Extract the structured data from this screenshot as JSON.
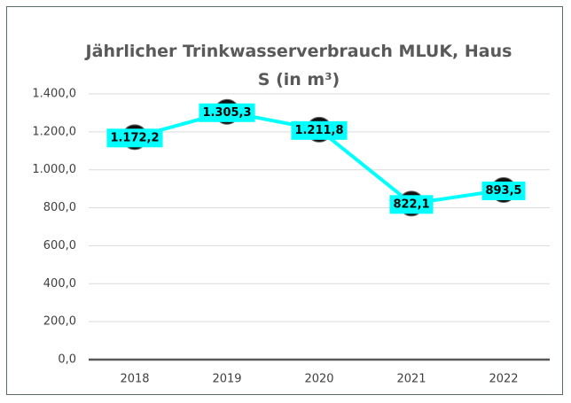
{
  "chart_data": {
    "type": "line",
    "title": "Jährlicher Trinkwasserverbrauch MLUK, Haus S (in m³)",
    "categories": [
      "2018",
      "2019",
      "2020",
      "2021",
      "2022"
    ],
    "series": [
      {
        "name": "Trinkwasserverbrauch",
        "color": "#00ffff",
        "values": [
          1172.2,
          1305.3,
          1211.8,
          822.1,
          893.5
        ],
        "value_labels": [
          "1.172,2",
          "1.305,3",
          "1.211,8",
          "822,1",
          "893,5"
        ]
      }
    ],
    "ylim": [
      0,
      1400
    ],
    "yticks": [
      {
        "value": 0,
        "label": "0,0"
      },
      {
        "value": 200,
        "label": "200,0"
      },
      {
        "value": 400,
        "label": "400,0"
      },
      {
        "value": 600,
        "label": "600,0"
      },
      {
        "value": 800,
        "label": "800,0"
      },
      {
        "value": 1000,
        "label": "1.000,0"
      },
      {
        "value": 1200,
        "label": "1.200,0"
      },
      {
        "value": 1400,
        "label": "1.400,0"
      }
    ],
    "grid": true
  }
}
